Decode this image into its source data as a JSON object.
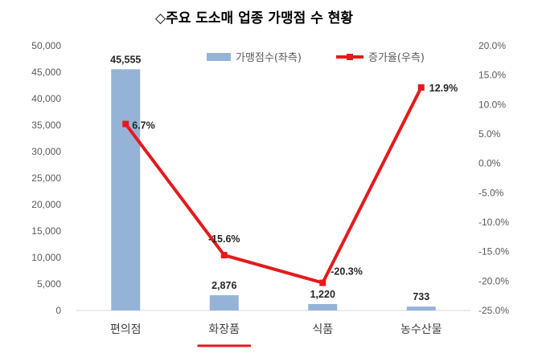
{
  "chart_data": {
    "type": "bar+line",
    "title": "◇주요 도소매 업종 가맹점 수 현황",
    "categories": [
      "편의점",
      "화장품",
      "식품",
      "농수산물"
    ],
    "series": [
      {
        "name": "가맹점수(좌측)",
        "type": "bar",
        "axis": "left",
        "values": [
          45555,
          2876,
          1220,
          733
        ],
        "labels": [
          "45,555",
          "2,876",
          "1,220",
          "733"
        ],
        "color": "#95B3D7"
      },
      {
        "name": "증가율(우측)",
        "type": "line",
        "axis": "right",
        "values": [
          6.7,
          -15.6,
          -20.3,
          12.9
        ],
        "labels": [
          "6.7%",
          "-15.6%",
          "-20.3%",
          "12.9%"
        ],
        "color": "#E41A1C"
      }
    ],
    "left_axis": {
      "ylim": [
        0,
        50000
      ],
      "ticks": [
        "0",
        "5,000",
        "10,000",
        "15,000",
        "20,000",
        "25,000",
        "30,000",
        "35,000",
        "40,000",
        "45,000",
        "50,000"
      ]
    },
    "right_axis": {
      "ylim": [
        -25,
        20
      ],
      "ticks": [
        "-25.0%",
        "-20.0%",
        "-15.0%",
        "-10.0%",
        "-5.0%",
        "0.0%",
        "5.0%",
        "10.0%",
        "15.0%",
        "20.0%"
      ]
    },
    "legend_position": "top-right",
    "grid": false,
    "highlighted_category": "화장품",
    "highlight_color": "#E41A1C"
  }
}
